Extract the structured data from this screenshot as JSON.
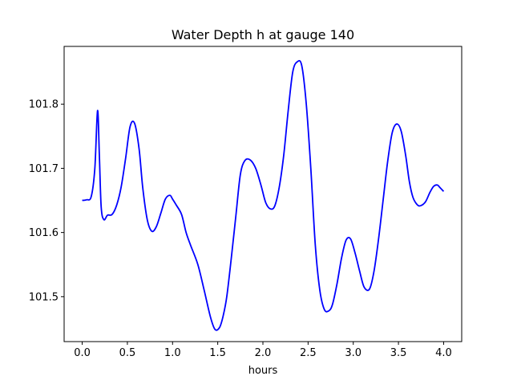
{
  "chart_data": {
    "type": "line",
    "title": "Water Depth h at gauge 140",
    "xlabel": "hours",
    "ylabel": "",
    "xlim": [
      -0.2,
      4.2
    ],
    "ylim": [
      101.43,
      101.89
    ],
    "x_ticks": [
      0.0,
      0.5,
      1.0,
      1.5,
      2.0,
      2.5,
      3.0,
      3.5,
      4.0
    ],
    "x_tick_labels": [
      "0.0",
      "0.5",
      "1.0",
      "1.5",
      "2.0",
      "2.5",
      "3.0",
      "3.5",
      "4.0"
    ],
    "y_ticks": [
      101.5,
      101.6,
      101.7,
      101.8
    ],
    "y_tick_labels": [
      "101.5",
      "101.6",
      "101.7",
      "101.8"
    ],
    "grid": false,
    "series": [
      {
        "color": "#0000ff",
        "x": [
          0.0,
          0.05,
          0.1,
          0.14,
          0.17,
          0.19,
          0.21,
          0.24,
          0.28,
          0.33,
          0.38,
          0.43,
          0.48,
          0.53,
          0.58,
          0.63,
          0.67,
          0.72,
          0.77,
          0.82,
          0.87,
          0.92,
          0.97,
          1.0,
          1.04,
          1.1,
          1.15,
          1.2,
          1.28,
          1.35,
          1.42,
          1.47,
          1.52,
          1.56,
          1.6,
          1.65,
          1.7,
          1.75,
          1.8,
          1.86,
          1.92,
          1.98,
          2.03,
          2.08,
          2.13,
          2.18,
          2.23,
          2.28,
          2.33,
          2.38,
          2.43,
          2.48,
          2.53,
          2.58,
          2.63,
          2.68,
          2.73,
          2.77,
          2.82,
          2.87,
          2.92,
          2.97,
          3.02,
          3.07,
          3.12,
          3.18,
          3.23,
          3.28,
          3.33,
          3.38,
          3.43,
          3.48,
          3.53,
          3.58,
          3.62,
          3.66,
          3.71,
          3.75,
          3.8,
          3.85,
          3.89,
          3.93,
          3.96,
          4.0
        ],
        "y": [
          101.65,
          101.651,
          101.656,
          101.7,
          101.79,
          101.72,
          101.64,
          101.62,
          101.627,
          101.628,
          101.642,
          101.67,
          101.715,
          101.765,
          101.77,
          101.73,
          101.67,
          101.62,
          101.602,
          101.609,
          101.63,
          101.652,
          101.658,
          101.652,
          101.643,
          101.628,
          101.6,
          101.58,
          101.55,
          101.51,
          101.468,
          101.449,
          101.452,
          101.47,
          101.5,
          101.56,
          101.625,
          101.69,
          101.712,
          101.713,
          101.7,
          101.673,
          101.647,
          101.637,
          101.641,
          101.67,
          101.72,
          101.79,
          101.85,
          101.866,
          101.86,
          101.8,
          101.7,
          101.58,
          101.51,
          101.48,
          101.478,
          101.488,
          101.52,
          101.56,
          101.588,
          101.59,
          101.568,
          101.54,
          101.515,
          101.512,
          101.54,
          101.59,
          101.65,
          101.71,
          101.755,
          101.769,
          101.758,
          101.72,
          101.68,
          101.655,
          101.643,
          101.642,
          101.648,
          101.663,
          101.672,
          101.674,
          101.67,
          101.664
        ]
      }
    ]
  }
}
